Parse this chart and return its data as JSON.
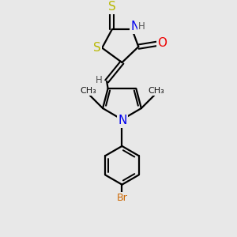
{
  "background_color": "#e8e8e8",
  "bond_color": "#000000",
  "atom_colors": {
    "S": "#b8b800",
    "N": "#0000ee",
    "O": "#ee0000",
    "Br": "#cc6600",
    "H": "#555555",
    "C": "#000000"
  },
  "font_size_atom": 10,
  "font_size_H": 8,
  "font_size_br": 9
}
